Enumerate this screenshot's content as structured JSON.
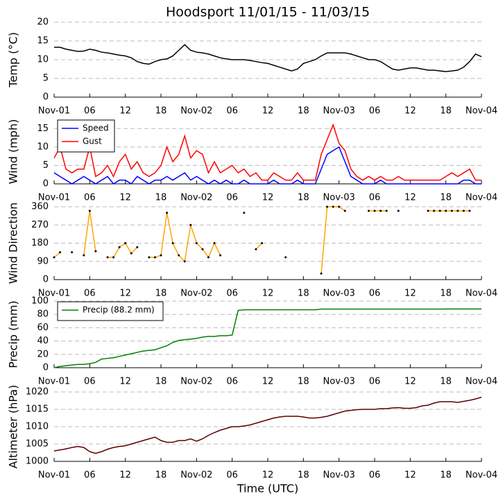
{
  "chart_data": [
    {
      "type": "line",
      "title": "Hoodsport 11/01/15 - 11/03/15",
      "ylabel": "Temp ($^\\circ$C)",
      "x": [
        0,
        1,
        2,
        3,
        4,
        5,
        6,
        7,
        8,
        9,
        10,
        11,
        12,
        13,
        14,
        15,
        16,
        17,
        18,
        19,
        20,
        21,
        22,
        23,
        24,
        25,
        26,
        27,
        28,
        29,
        30,
        31,
        32,
        33,
        34,
        35,
        36,
        37,
        38,
        39,
        40,
        41,
        42,
        43,
        44,
        45,
        46,
        47,
        48,
        49,
        50,
        51,
        52,
        53,
        54,
        55,
        56,
        57,
        58,
        59,
        60,
        61,
        62,
        63,
        64,
        65,
        66,
        67,
        68,
        69,
        70,
        71,
        72
      ],
      "xlim": [
        0,
        72
      ],
      "xticks": [
        {
          "value": 0,
          "label": "Nov-01"
        },
        {
          "value": 6,
          "label": "06"
        },
        {
          "value": 12,
          "label": "12"
        },
        {
          "value": 18,
          "label": "18"
        },
        {
          "value": 24,
          "label": "Nov-02"
        },
        {
          "value": 30,
          "label": "06"
        },
        {
          "value": 36,
          "label": "12"
        },
        {
          "value": 42,
          "label": "18"
        },
        {
          "value": 48,
          "label": "Nov-03"
        },
        {
          "value": 54,
          "label": "06"
        },
        {
          "value": 60,
          "label": "12"
        },
        {
          "value": 66,
          "label": "18"
        },
        {
          "value": 72,
          "label": "Nov-04"
        }
      ],
      "ylim": [
        0,
        20
      ],
      "yticks": [
        0,
        5,
        10,
        15,
        20
      ],
      "grid": true,
      "series": [
        {
          "name": "Temp",
          "color": "#000000",
          "values": [
            13.3,
            13.3,
            12.8,
            12.5,
            12.2,
            12.3,
            12.8,
            12.5,
            12,
            11.8,
            11.5,
            11.2,
            11,
            10.5,
            9.5,
            9,
            8.8,
            9.5,
            10,
            10.2,
            11,
            12.5,
            14,
            12.5,
            12,
            11.8,
            11.5,
            11,
            10.5,
            10.2,
            10,
            10,
            10,
            9.8,
            9.5,
            9.2,
            9,
            8.5,
            8,
            7.5,
            7,
            7.5,
            9,
            9.5,
            10,
            11,
            11.8,
            11.8,
            11.8,
            11.8,
            11.5,
            11,
            10.5,
            10,
            10,
            9.5,
            8.5,
            7.5,
            7.2,
            7.5,
            7.8,
            7.8,
            7.5,
            7.2,
            7.2,
            7,
            6.8,
            7,
            7.2,
            8,
            9.5,
            11.5,
            10.8
          ]
        }
      ]
    },
    {
      "type": "line",
      "ylabel": "Wind (mph)",
      "legend": "upper left",
      "x": [
        0,
        1,
        2,
        3,
        4,
        5,
        6,
        7,
        8,
        9,
        10,
        11,
        12,
        13,
        14,
        15,
        16,
        17,
        18,
        19,
        20,
        21,
        22,
        23,
        24,
        25,
        26,
        27,
        28,
        29,
        30,
        31,
        32,
        33,
        34,
        35,
        36,
        37,
        38,
        39,
        40,
        41,
        42,
        43,
        44,
        45,
        46,
        47,
        48,
        49,
        50,
        51,
        52,
        53,
        54,
        55,
        56,
        57,
        58,
        59,
        60,
        61,
        62,
        63,
        64,
        65,
        66,
        67,
        68,
        69,
        70,
        71,
        72
      ],
      "xlim": [
        0,
        72
      ],
      "xticks": [
        {
          "value": 0,
          "label": "Nov-01"
        },
        {
          "value": 6,
          "label": "06"
        },
        {
          "value": 12,
          "label": "12"
        },
        {
          "value": 18,
          "label": "18"
        },
        {
          "value": 24,
          "label": "Nov-02"
        },
        {
          "value": 30,
          "label": "06"
        },
        {
          "value": 36,
          "label": "12"
        },
        {
          "value": 42,
          "label": "18"
        },
        {
          "value": 48,
          "label": "Nov-03"
        },
        {
          "value": 54,
          "label": "06"
        },
        {
          "value": 60,
          "label": "12"
        },
        {
          "value": 66,
          "label": "18"
        },
        {
          "value": 72,
          "label": "Nov-04"
        }
      ],
      "ylim": [
        0,
        17.5
      ],
      "yticks": [
        0,
        5,
        10,
        15
      ],
      "grid": true,
      "series": [
        {
          "name": "Speed",
          "color": "#0000ff",
          "values": [
            3,
            2,
            1,
            0,
            1,
            2,
            1,
            0,
            1,
            2,
            0,
            1,
            1,
            0,
            2,
            1,
            0,
            1,
            1,
            2,
            1,
            2,
            3,
            1,
            2,
            1,
            0,
            1,
            0,
            1,
            0,
            0,
            1,
            0,
            0,
            0,
            0,
            1,
            0,
            0,
            0,
            1,
            0,
            0,
            0,
            4,
            8,
            9,
            10,
            6,
            2,
            1,
            0,
            0,
            0,
            1,
            0,
            0,
            0,
            0,
            0,
            0,
            0,
            0,
            0,
            0,
            0,
            0,
            0,
            1,
            1,
            0,
            0
          ]
        },
        {
          "name": "Gust",
          "color": "#ff0000",
          "values": [
            7,
            10,
            4,
            3,
            4,
            4,
            10,
            2,
            3,
            5,
            2,
            6,
            8,
            4,
            6,
            3,
            2,
            3,
            5,
            10,
            6,
            8,
            13,
            7,
            9,
            8,
            3,
            6,
            3,
            4,
            5,
            3,
            4,
            2,
            3,
            1,
            1,
            3,
            2,
            1,
            1,
            3,
            1,
            1,
            1,
            8,
            12,
            16,
            11,
            9,
            4,
            2,
            1,
            2,
            1,
            2,
            1,
            1,
            2,
            1,
            1,
            1,
            1,
            1,
            1,
            1,
            2,
            3,
            2,
            3,
            4,
            1,
            1
          ]
        }
      ]
    },
    {
      "type": "line",
      "markers": true,
      "ylabel": "Wind Direction",
      "x": [
        0,
        1,
        2,
        3,
        4,
        5,
        6,
        7,
        8,
        9,
        10,
        11,
        12,
        13,
        14,
        15,
        16,
        17,
        18,
        19,
        20,
        21,
        22,
        23,
        24,
        25,
        26,
        27,
        28,
        29,
        30,
        31,
        32,
        33,
        34,
        35,
        36,
        37,
        38,
        39,
        40,
        41,
        42,
        43,
        44,
        45,
        46,
        47,
        48,
        49,
        50,
        51,
        52,
        53,
        54,
        55,
        56,
        57,
        58,
        59,
        60,
        61,
        62,
        63,
        64,
        65,
        66,
        67,
        68,
        69,
        70,
        71,
        72
      ],
      "xlim": [
        0,
        72
      ],
      "xticks": [
        {
          "value": 0,
          "label": "Nov-01"
        },
        {
          "value": 6,
          "label": "06"
        },
        {
          "value": 12,
          "label": "12"
        },
        {
          "value": 18,
          "label": "18"
        },
        {
          "value": 24,
          "label": "Nov-02"
        },
        {
          "value": 30,
          "label": "06"
        },
        {
          "value": 36,
          "label": "12"
        },
        {
          "value": 42,
          "label": "18"
        },
        {
          "value": 48,
          "label": "Nov-03"
        },
        {
          "value": 54,
          "label": "06"
        },
        {
          "value": 60,
          "label": "12"
        },
        {
          "value": 66,
          "label": "18"
        },
        {
          "value": 72,
          "label": "Nov-04"
        }
      ],
      "ylim": [
        0,
        360
      ],
      "yticks": [
        0,
        90,
        180,
        270,
        360
      ],
      "grid": true,
      "series": [
        {
          "name": "Direction",
          "color": "#ffa500",
          "values": [
            110,
            135,
            null,
            135,
            null,
            120,
            340,
            140,
            null,
            110,
            110,
            160,
            180,
            130,
            160,
            null,
            110,
            110,
            120,
            330,
            180,
            120,
            90,
            270,
            180,
            150,
            110,
            180,
            120,
            null,
            null,
            null,
            330,
            null,
            150,
            180,
            null,
            null,
            null,
            110,
            null,
            null,
            null,
            null,
            null,
            30,
            360,
            360,
            360,
            340,
            null,
            null,
            null,
            340,
            340,
            340,
            340,
            null,
            340,
            null,
            null,
            null,
            null,
            340,
            340,
            340,
            340,
            340,
            340,
            340,
            340,
            null,
            null
          ]
        }
      ]
    },
    {
      "type": "line",
      "ylabel": "Precip (mm)",
      "legend": "upper left",
      "x": [
        0,
        1,
        2,
        3,
        4,
        5,
        6,
        7,
        8,
        9,
        10,
        11,
        12,
        13,
        14,
        15,
        16,
        17,
        18,
        19,
        20,
        21,
        22,
        23,
        24,
        25,
        26,
        27,
        28,
        29,
        30,
        31,
        32,
        33,
        34,
        35,
        36,
        37,
        38,
        39,
        40,
        41,
        42,
        43,
        44,
        45,
        46,
        47,
        48,
        49,
        50,
        51,
        52,
        53,
        54,
        55,
        56,
        57,
        58,
        59,
        60,
        61,
        62,
        63,
        64,
        65,
        66,
        67,
        68,
        69,
        70,
        71,
        72
      ],
      "xlim": [
        0,
        72
      ],
      "xticks": [
        {
          "value": 0,
          "label": "Nov-01"
        },
        {
          "value": 6,
          "label": "06"
        },
        {
          "value": 12,
          "label": "12"
        },
        {
          "value": 18,
          "label": "18"
        },
        {
          "value": 24,
          "label": "Nov-02"
        },
        {
          "value": 30,
          "label": "06"
        },
        {
          "value": 36,
          "label": "12"
        },
        {
          "value": 42,
          "label": "18"
        },
        {
          "value": 48,
          "label": "Nov-03"
        },
        {
          "value": 54,
          "label": "06"
        },
        {
          "value": 60,
          "label": "12"
        },
        {
          "value": 66,
          "label": "18"
        },
        {
          "value": 72,
          "label": "Nov-04"
        }
      ],
      "ylim": [
        0,
        100
      ],
      "yticks": [
        0,
        20,
        40,
        60,
        80,
        100
      ],
      "grid": true,
      "series": [
        {
          "name": "Precip (88.2 mm)",
          "color": "#008000",
          "values": [
            0,
            2,
            3,
            4,
            5,
            5,
            6,
            8,
            13,
            14,
            15,
            17,
            19,
            21,
            23,
            25,
            26,
            27,
            30,
            33,
            38,
            41,
            42,
            43,
            44,
            46,
            47,
            47,
            48,
            48,
            49,
            86,
            87,
            87,
            87,
            87,
            87,
            87,
            87,
            87,
            87,
            87,
            87,
            87,
            87,
            88,
            88,
            88,
            88,
            88,
            88,
            88,
            88,
            88,
            88,
            88,
            88,
            88,
            88,
            88,
            88,
            88,
            88,
            88,
            88,
            88,
            88.2,
            88.2,
            88.2,
            88.2,
            88.2,
            88.2,
            88.2
          ]
        }
      ]
    },
    {
      "type": "line",
      "ylabel": "Altimeter (hPa)",
      "xlabel": "Time (UTC)",
      "x": [
        0,
        1,
        2,
        3,
        4,
        5,
        6,
        7,
        8,
        9,
        10,
        11,
        12,
        13,
        14,
        15,
        16,
        17,
        18,
        19,
        20,
        21,
        22,
        23,
        24,
        25,
        26,
        27,
        28,
        29,
        30,
        31,
        32,
        33,
        34,
        35,
        36,
        37,
        38,
        39,
        40,
        41,
        42,
        43,
        44,
        45,
        46,
        47,
        48,
        49,
        50,
        51,
        52,
        53,
        54,
        55,
        56,
        57,
        58,
        59,
        60,
        61,
        62,
        63,
        64,
        65,
        66,
        67,
        68,
        69,
        70,
        71,
        72
      ],
      "xlim": [
        0,
        72
      ],
      "xticks": [
        {
          "value": 0,
          "label": "Nov-01"
        },
        {
          "value": 6,
          "label": "06"
        },
        {
          "value": 12,
          "label": "12"
        },
        {
          "value": 18,
          "label": "18"
        },
        {
          "value": 24,
          "label": "Nov-02"
        },
        {
          "value": 30,
          "label": "06"
        },
        {
          "value": 36,
          "label": "12"
        },
        {
          "value": 42,
          "label": "18"
        },
        {
          "value": 48,
          "label": "Nov-03"
        },
        {
          "value": 54,
          "label": "06"
        },
        {
          "value": 60,
          "label": "12"
        },
        {
          "value": 66,
          "label": "18"
        },
        {
          "value": 72,
          "label": "Nov-04"
        }
      ],
      "ylim": [
        1000,
        1020
      ],
      "yticks": [
        1000,
        1005,
        1010,
        1015,
        1020
      ],
      "grid": true,
      "series": [
        {
          "name": "Altimeter",
          "color": "#5a0000",
          "values": [
            1003,
            1003.3,
            1003.6,
            1004,
            1004.3,
            1004,
            1002.8,
            1002.3,
            1002.8,
            1003.5,
            1004,
            1004.3,
            1004.5,
            1005,
            1005.5,
            1006,
            1006.5,
            1007,
            1006,
            1005.5,
            1005.5,
            1006,
            1006,
            1006.5,
            1005.8,
            1006.5,
            1007.5,
            1008.3,
            1009,
            1009.5,
            1010,
            1010,
            1010.2,
            1010.5,
            1011,
            1011.5,
            1012,
            1012.5,
            1012.8,
            1013,
            1013,
            1013,
            1012.8,
            1012.5,
            1012.5,
            1012.7,
            1013,
            1013.5,
            1014,
            1014.5,
            1014.7,
            1014.9,
            1015,
            1015,
            1015,
            1015.2,
            1015.2,
            1015.4,
            1015.5,
            1015.3,
            1015.3,
            1015.5,
            1016,
            1016.2,
            1016.8,
            1017.2,
            1017.2,
            1017.2,
            1017,
            1017.3,
            1017.6,
            1018,
            1018.5
          ]
        }
      ]
    }
  ]
}
